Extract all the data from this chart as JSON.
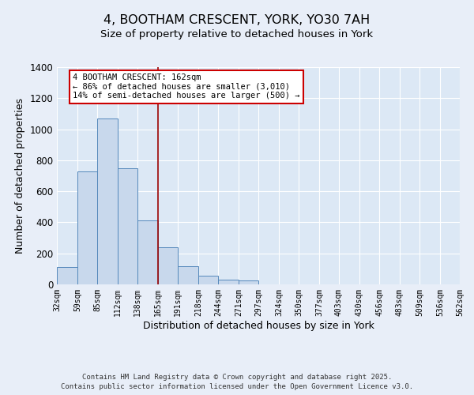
{
  "title": "4, BOOTHAM CRESCENT, YORK, YO30 7AH",
  "subtitle": "Size of property relative to detached houses in York",
  "xlabel": "Distribution of detached houses by size in York",
  "ylabel": "Number of detached properties",
  "bar_values": [
    110,
    730,
    1070,
    750,
    410,
    240,
    115,
    55,
    30,
    25,
    0,
    0,
    0,
    0,
    0,
    0,
    0,
    0,
    0,
    0
  ],
  "bin_edges": [
    32,
    59,
    85,
    112,
    138,
    165,
    191,
    218,
    244,
    271,
    297,
    324,
    350,
    377,
    403,
    430,
    456,
    483,
    509,
    536,
    562
  ],
  "tick_labels": [
    "32sqm",
    "59sqm",
    "85sqm",
    "112sqm",
    "138sqm",
    "165sqm",
    "191sqm",
    "218sqm",
    "244sqm",
    "271sqm",
    "297sqm",
    "324sqm",
    "350sqm",
    "377sqm",
    "403sqm",
    "430sqm",
    "456sqm",
    "483sqm",
    "509sqm",
    "536sqm",
    "562sqm"
  ],
  "bar_color": "#c8d8ec",
  "bar_edge_color": "#5588bb",
  "red_line_x": 165,
  "ylim": [
    0,
    1400
  ],
  "yticks": [
    0,
    200,
    400,
    600,
    800,
    1000,
    1200,
    1400
  ],
  "annotation_title": "4 BOOTHAM CRESCENT: 162sqm",
  "annotation_line1": "← 86% of detached houses are smaller (3,010)",
  "annotation_line2": "14% of semi-detached houses are larger (500) →",
  "footer1": "Contains HM Land Registry data © Crown copyright and database right 2025.",
  "footer2": "Contains public sector information licensed under the Open Government Licence v3.0.",
  "background_color": "#e8eef8",
  "plot_bg_color": "#dce8f5",
  "grid_color": "#ffffff",
  "title_fontsize": 11.5,
  "subtitle_fontsize": 9.5,
  "annotation_box_color": "#ffffff",
  "annotation_box_edge": "#cc0000",
  "footer_fontsize": 6.5
}
